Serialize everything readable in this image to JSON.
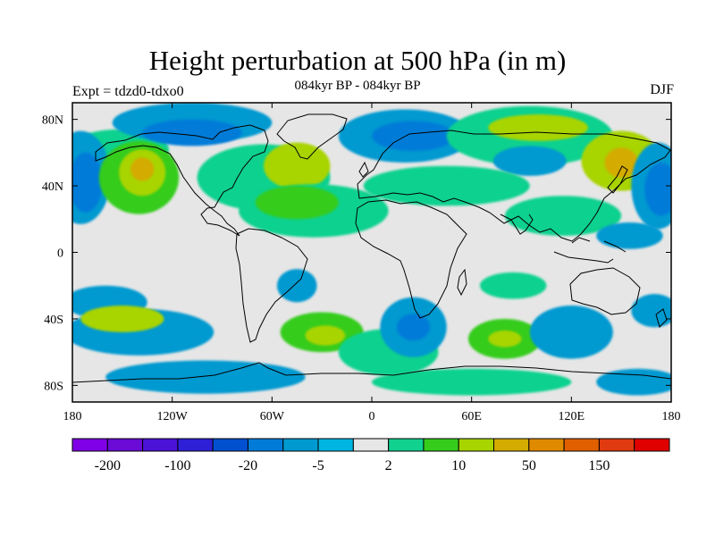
{
  "title": "Height perturbation at 500 hPa (in m)",
  "subtitle": "084kyr BP - 084kyr BP",
  "left_label": "Expt = tdzd0-tdxo0",
  "right_label": "DJF",
  "map": {
    "projection": "cylindrical equidistant",
    "lon_range": [
      -180,
      180
    ],
    "lat_range": [
      -90,
      90
    ],
    "background_color": "#e6e6e6",
    "x_ticks": [
      {
        "value": -180,
        "label": "180"
      },
      {
        "value": -120,
        "label": "120W"
      },
      {
        "value": -60,
        "label": "60W"
      },
      {
        "value": 0,
        "label": "0"
      },
      {
        "value": 60,
        "label": "60E"
      },
      {
        "value": 120,
        "label": "120E"
      },
      {
        "value": 180,
        "label": "180"
      }
    ],
    "y_ticks": [
      {
        "value": 80,
        "label": "80N"
      },
      {
        "value": 40,
        "label": "40N"
      },
      {
        "value": 0,
        "label": "0"
      },
      {
        "value": -40,
        "label": "40S"
      },
      {
        "value": -80,
        "label": "80S"
      }
    ],
    "fields": [
      {
        "lon": -152,
        "lat": 62,
        "rx": 30,
        "ry": 12,
        "color": "#11d18e"
      },
      {
        "lon": -108,
        "lat": 78,
        "rx": 48,
        "ry": 12,
        "color": "#0099d0"
      },
      {
        "lon": -108,
        "lat": 72,
        "rx": 30,
        "ry": 8,
        "color": "#007bd8"
      },
      {
        "lon": -175,
        "lat": 45,
        "rx": 18,
        "ry": 28,
        "color": "#0099d0"
      },
      {
        "lon": -172,
        "lat": 42,
        "rx": 10,
        "ry": 18,
        "color": "#007bd8"
      },
      {
        "lon": -140,
        "lat": 45,
        "rx": 24,
        "ry": 22,
        "color": "#36cc1c"
      },
      {
        "lon": -138,
        "lat": 48,
        "rx": 14,
        "ry": 14,
        "color": "#a8d400"
      },
      {
        "lon": -138,
        "lat": 50,
        "rx": 7,
        "ry": 7,
        "color": "#d4ab00"
      },
      {
        "lon": -65,
        "lat": 45,
        "rx": 40,
        "ry": 20,
        "color": "#11d18e"
      },
      {
        "lon": -45,
        "lat": 52,
        "rx": 20,
        "ry": 14,
        "color": "#a8d400"
      },
      {
        "lon": -35,
        "lat": 25,
        "rx": 45,
        "ry": 16,
        "color": "#11d18e"
      },
      {
        "lon": -45,
        "lat": 30,
        "rx": 25,
        "ry": 10,
        "color": "#36cc1c"
      },
      {
        "lon": 20,
        "lat": 70,
        "rx": 40,
        "ry": 16,
        "color": "#0099d0"
      },
      {
        "lon": 25,
        "lat": 70,
        "rx": 25,
        "ry": 9,
        "color": "#007bd8"
      },
      {
        "lon": 95,
        "lat": 70,
        "rx": 50,
        "ry": 18,
        "color": "#11d18e"
      },
      {
        "lon": 100,
        "lat": 75,
        "rx": 30,
        "ry": 8,
        "color": "#a8d400"
      },
      {
        "lon": 95,
        "lat": 55,
        "rx": 22,
        "ry": 9,
        "color": "#0099d0"
      },
      {
        "lon": 45,
        "lat": 40,
        "rx": 50,
        "ry": 12,
        "color": "#11d18e"
      },
      {
        "lon": 150,
        "lat": 55,
        "rx": 24,
        "ry": 18,
        "color": "#a8d400"
      },
      {
        "lon": 150,
        "lat": 54,
        "rx": 10,
        "ry": 9,
        "color": "#d4ab00"
      },
      {
        "lon": 172,
        "lat": 40,
        "rx": 16,
        "ry": 26,
        "color": "#0099d0"
      },
      {
        "lon": 174,
        "lat": 38,
        "rx": 10,
        "ry": 16,
        "color": "#007bd8"
      },
      {
        "lon": 115,
        "lat": 22,
        "rx": 35,
        "ry": 12,
        "color": "#11d18e"
      },
      {
        "lon": 155,
        "lat": 10,
        "rx": 20,
        "ry": 8,
        "color": "#0099d0"
      },
      {
        "lon": -160,
        "lat": -30,
        "rx": 25,
        "ry": 10,
        "color": "#0099d0"
      },
      {
        "lon": -140,
        "lat": -48,
        "rx": 45,
        "ry": 14,
        "color": "#0099d0"
      },
      {
        "lon": -150,
        "lat": -40,
        "rx": 25,
        "ry": 8,
        "color": "#a8d400"
      },
      {
        "lon": -45,
        "lat": -20,
        "rx": 12,
        "ry": 10,
        "color": "#0099d0"
      },
      {
        "lon": -30,
        "lat": -48,
        "rx": 25,
        "ry": 12,
        "color": "#36cc1c"
      },
      {
        "lon": -28,
        "lat": -50,
        "rx": 12,
        "ry": 6,
        "color": "#a8d400"
      },
      {
        "lon": 10,
        "lat": -60,
        "rx": 30,
        "ry": 14,
        "color": "#11d18e"
      },
      {
        "lon": 25,
        "lat": -45,
        "rx": 20,
        "ry": 18,
        "color": "#0099d0"
      },
      {
        "lon": 25,
        "lat": -45,
        "rx": 10,
        "ry": 8,
        "color": "#007bd8"
      },
      {
        "lon": 80,
        "lat": -52,
        "rx": 22,
        "ry": 12,
        "color": "#36cc1c"
      },
      {
        "lon": 80,
        "lat": -52,
        "rx": 10,
        "ry": 5,
        "color": "#a8d400"
      },
      {
        "lon": 120,
        "lat": -48,
        "rx": 25,
        "ry": 16,
        "color": "#0099d0"
      },
      {
        "lon": 85,
        "lat": -20,
        "rx": 20,
        "ry": 8,
        "color": "#11d18e"
      },
      {
        "lon": 170,
        "lat": -35,
        "rx": 14,
        "ry": 10,
        "color": "#0099d0"
      },
      {
        "lon": -100,
        "lat": -75,
        "rx": 60,
        "ry": 10,
        "color": "#0099d0"
      },
      {
        "lon": 60,
        "lat": -78,
        "rx": 60,
        "ry": 8,
        "color": "#11d18e"
      },
      {
        "lon": 160,
        "lat": -78,
        "rx": 25,
        "ry": 8,
        "color": "#0099d0"
      }
    ]
  },
  "colorbar": {
    "colors": [
      "#7f00e6",
      "#6a0bd6",
      "#4b12d8",
      "#2e20d6",
      "#0050d0",
      "#007bd8",
      "#0099d0",
      "#00b5e2",
      "#e6e6e6",
      "#11d18e",
      "#36cc1c",
      "#a8d400",
      "#d4ab00",
      "#e08a00",
      "#e06000",
      "#e03a10",
      "#e00000"
    ],
    "labels": [
      {
        "boundary": 1,
        "text": "-200"
      },
      {
        "boundary": 3,
        "text": "-100"
      },
      {
        "boundary": 5,
        "text": "-20"
      },
      {
        "boundary": 7,
        "text": "-5"
      },
      {
        "boundary": 9,
        "text": "2"
      },
      {
        "boundary": 11,
        "text": "10"
      },
      {
        "boundary": 13,
        "text": "50"
      },
      {
        "boundary": 15,
        "text": "150"
      }
    ]
  }
}
